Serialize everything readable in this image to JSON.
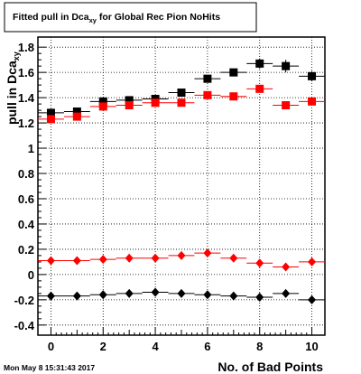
{
  "chart_data": {
    "type": "scatter",
    "title": "Fitted pull in Dca",
    "title_subscript": "xy",
    "title_suffix": " for Global Rec Pion NoHits",
    "xlabel": "No. of Bad Points",
    "ylabel": "pull in Dca",
    "ylabel_subscript": "xy",
    "xlim": [
      -0.5,
      10.5
    ],
    "ylim": [
      -0.48,
      1.88
    ],
    "xticks": [
      0,
      2,
      4,
      6,
      8,
      10
    ],
    "xtick_labels": [
      "0",
      "2",
      "4",
      "6",
      "8",
      "10"
    ],
    "yticks": [
      -0.4,
      -0.2,
      0,
      0.2,
      0.4,
      0.6,
      0.8,
      1.0,
      1.2,
      1.4,
      1.6,
      1.8
    ],
    "ytick_labels": [
      "-0.4",
      "-0.2",
      "0",
      "0.2",
      "0.4",
      "0.6",
      "0.8",
      "1",
      "1.2",
      "1.4",
      "1.6",
      "1.8"
    ],
    "grid": true,
    "series": [
      {
        "marker": "square",
        "color": "#000000",
        "x": [
          0,
          1,
          2,
          3,
          4,
          5,
          6,
          7,
          8,
          9,
          10
        ],
        "y": [
          1.28,
          1.29,
          1.37,
          1.38,
          1.39,
          1.44,
          1.55,
          1.6,
          1.67,
          1.65,
          1.57
        ],
        "yerr": [
          0.02,
          0.02,
          0.02,
          0.02,
          0.02,
          0.02,
          0.03,
          0.03,
          0.04,
          0.05,
          0.04
        ]
      },
      {
        "marker": "square",
        "color": "#ff0000",
        "x": [
          0,
          1,
          2,
          3,
          4,
          5,
          6,
          7,
          8,
          9,
          10
        ],
        "y": [
          1.23,
          1.25,
          1.33,
          1.34,
          1.36,
          1.36,
          1.42,
          1.41,
          1.47,
          1.34,
          1.37
        ],
        "yerr": [
          0.02,
          0.02,
          0.02,
          0.02,
          0.02,
          0.02,
          0.02,
          0.02,
          0.03,
          0.03,
          0.03
        ]
      },
      {
        "marker": "diamond",
        "color": "#ff0000",
        "x": [
          0,
          1,
          2,
          3,
          4,
          5,
          6,
          7,
          8,
          9,
          10
        ],
        "y": [
          0.11,
          0.11,
          0.12,
          0.13,
          0.13,
          0.15,
          0.17,
          0.13,
          0.09,
          0.06,
          0.1
        ],
        "yerr": [
          0.01,
          0.01,
          0.01,
          0.01,
          0.01,
          0.01,
          0.01,
          0.01,
          0.02,
          0.02,
          0.02
        ]
      },
      {
        "marker": "diamond",
        "color": "#000000",
        "x": [
          0,
          1,
          2,
          3,
          4,
          5,
          6,
          7,
          8,
          9,
          10
        ],
        "y": [
          -0.17,
          -0.17,
          -0.16,
          -0.15,
          -0.14,
          -0.15,
          -0.16,
          -0.17,
          -0.18,
          -0.15,
          -0.2
        ],
        "yerr": [
          0.01,
          0.01,
          0.01,
          0.01,
          0.01,
          0.01,
          0.01,
          0.01,
          0.02,
          0.03,
          0.02
        ]
      }
    ]
  },
  "footer": {
    "timestamp": "Mon May  8 15:31:43 2017"
  }
}
